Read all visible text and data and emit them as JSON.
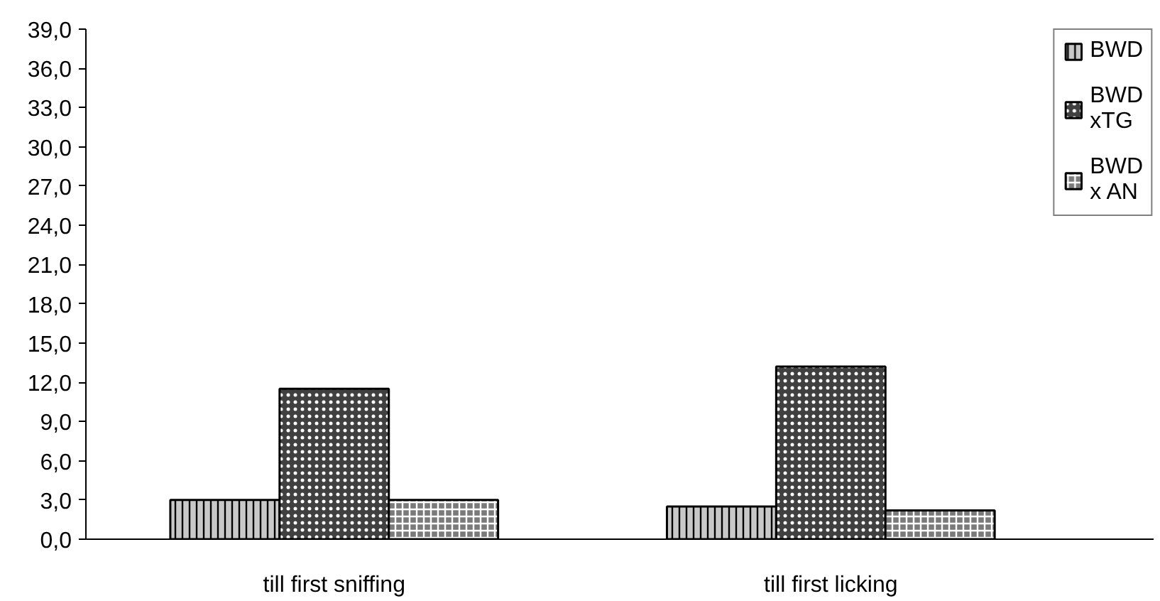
{
  "chart_data": {
    "type": "bar",
    "categories": [
      "till first sniffing",
      "till first licking"
    ],
    "series": [
      {
        "name": "BWD",
        "color": "#c8c8c8",
        "values": [
          3.0,
          2.5
        ]
      },
      {
        "name": "BWD xTG",
        "color": "#404040",
        "values": [
          11.5,
          13.2
        ]
      },
      {
        "name": "BWD x AN",
        "color": "#7a7a7a",
        "values": [
          3.0,
          2.2
        ]
      }
    ],
    "ylim": [
      0,
      39
    ],
    "yticks": [
      {
        "value": 0,
        "label": "0,0"
      },
      {
        "value": 3,
        "label": "3,0"
      },
      {
        "value": 6,
        "label": "6,0"
      },
      {
        "value": 9,
        "label": "9,0"
      },
      {
        "value": 12,
        "label": "12,0"
      },
      {
        "value": 15,
        "label": "15,0"
      },
      {
        "value": 18,
        "label": "18,0"
      },
      {
        "value": 21,
        "label": "21,0"
      },
      {
        "value": 24,
        "label": "24,0"
      },
      {
        "value": 27,
        "label": "27,0"
      },
      {
        "value": 30,
        "label": "30,0"
      },
      {
        "value": 33,
        "label": "33,0"
      },
      {
        "value": 36,
        "label": "36,0"
      },
      {
        "value": 39,
        "label": "39,0"
      }
    ],
    "grid": false,
    "legend": "right"
  }
}
